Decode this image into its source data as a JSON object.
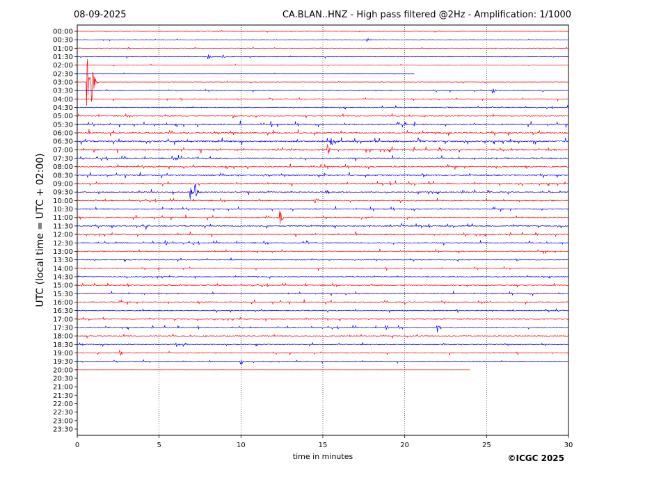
{
  "header": {
    "date": "08-09-2025",
    "title": "CA.BLAN..HNZ - High pass filtered @2Hz - Amplification: 1/1000"
  },
  "footer": {
    "copyright": "©ICGC 2025"
  },
  "chart_data": {
    "type": "line",
    "title": "CA.BLAN..HNZ - High pass filtered @2Hz - Amplification: 1/1000",
    "xlabel": "time in minutes",
    "ylabel": "UTC (local time = UTC + 02:00)",
    "xlim": [
      0,
      30
    ],
    "x_ticks": [
      "0",
      "5",
      "10",
      "15",
      "20",
      "25",
      "30"
    ],
    "row_labels": [
      "00:00",
      "00:30",
      "01:00",
      "01:30",
      "02:00",
      "02:30",
      "03:00",
      "03:30",
      "04:00",
      "04:30",
      "05:00",
      "05:30",
      "06:00",
      "06:30",
      "07:00",
      "07:30",
      "08:00",
      "08:30",
      "09:00",
      "09:30",
      "10:00",
      "10:30",
      "11:00",
      "11:30",
      "12:00",
      "12:30",
      "13:00",
      "13:30",
      "14:00",
      "14:30",
      "15:00",
      "15:30",
      "16:00",
      "16:30",
      "17:00",
      "17:30",
      "18:00",
      "18:30",
      "19:00",
      "19:30",
      "20:00",
      "20:30",
      "21:00",
      "21:30",
      "22:00",
      "22:30",
      "23:00",
      "23:30"
    ],
    "trace_colors": [
      "#ff0000",
      "#0000ff"
    ],
    "grid": {
      "vertical_dotted": true,
      "x": [
        5,
        10,
        15,
        20,
        25
      ]
    },
    "trace_end_minutes": [
      30,
      30,
      30,
      30,
      30,
      20.6,
      30,
      30,
      30,
      30,
      30,
      30,
      30,
      30,
      30,
      30,
      30,
      30,
      30,
      30,
      30,
      30,
      30,
      30,
      30,
      30,
      30,
      30,
      30,
      30,
      30,
      30,
      30,
      30,
      30,
      30,
      30,
      30,
      30,
      30,
      24,
      0,
      0,
      0,
      0,
      0,
      0,
      0
    ],
    "gaps": [
      {
        "row": "02:30",
        "from": 20.6,
        "to": 27.4
      }
    ],
    "noise_level": [
      0.4,
      0.4,
      0.5,
      0.6,
      0.4,
      0.3,
      0.4,
      0.7,
      0.7,
      0.8,
      0.9,
      1.3,
      1.4,
      1.5,
      1.4,
      1.2,
      1.1,
      1.2,
      1.2,
      1.1,
      1.0,
      1.0,
      1.1,
      1.1,
      1.0,
      1.0,
      0.9,
      0.8,
      0.8,
      0.8,
      0.9,
      0.9,
      1.0,
      0.9,
      0.9,
      0.9,
      0.8,
      0.8,
      0.8,
      0.7,
      0.1,
      0,
      0,
      0,
      0,
      0,
      0,
      0
    ],
    "events": [
      {
        "row": "00:30",
        "minute": 17.7,
        "amp": 4
      },
      {
        "row": "01:00",
        "minute": 3.1,
        "amp": 4
      },
      {
        "row": "01:30",
        "minute": 8.0,
        "amp": 5
      },
      {
        "row": "01:30",
        "minute": 8.9,
        "amp": 3
      },
      {
        "row": "02:30",
        "minute": 27.5,
        "amp": 6
      },
      {
        "row": "02:30",
        "minute": 28.3,
        "amp": 4
      },
      {
        "row": "03:00",
        "minute": 0.6,
        "amp": 45
      },
      {
        "row": "03:00",
        "minute": 0.9,
        "amp": 35
      },
      {
        "row": "03:30",
        "minute": 25.4,
        "amp": 6
      },
      {
        "row": "04:30",
        "minute": 22.5,
        "amp": 4
      },
      {
        "row": "05:00",
        "minute": 9.5,
        "amp": 5
      },
      {
        "row": "06:30",
        "minute": 15.5,
        "amp": 9
      },
      {
        "row": "07:00",
        "minute": 15.3,
        "amp": 8
      },
      {
        "row": "08:30",
        "minute": 21.1,
        "amp": 7
      },
      {
        "row": "09:30",
        "minute": 6.9,
        "amp": 10
      },
      {
        "row": "09:30",
        "minute": 7.2,
        "amp": 18
      },
      {
        "row": "09:30",
        "minute": 15.2,
        "amp": 6
      },
      {
        "row": "10:00",
        "minute": 14.5,
        "amp": 7
      },
      {
        "row": "11:00",
        "minute": 12.4,
        "amp": 10
      },
      {
        "row": "11:30",
        "minute": 4.2,
        "amp": 6
      },
      {
        "row": "11:30",
        "minute": 19.8,
        "amp": 5
      },
      {
        "row": "12:00",
        "minute": 17.0,
        "amp": 5
      },
      {
        "row": "12:30",
        "minute": 5.4,
        "amp": 5
      },
      {
        "row": "12:30",
        "minute": 14.0,
        "amp": 5
      },
      {
        "row": "13:30",
        "minute": 26.8,
        "amp": 4
      },
      {
        "row": "16:00",
        "minute": 20.0,
        "amp": 4
      },
      {
        "row": "17:30",
        "minute": 18.8,
        "amp": 7
      },
      {
        "row": "17:30",
        "minute": 22.0,
        "amp": 7
      },
      {
        "row": "18:30",
        "minute": 6.0,
        "amp": 6
      },
      {
        "row": "19:00",
        "minute": 2.6,
        "amp": 6
      },
      {
        "row": "19:30",
        "minute": 10.0,
        "amp": 6
      }
    ]
  }
}
